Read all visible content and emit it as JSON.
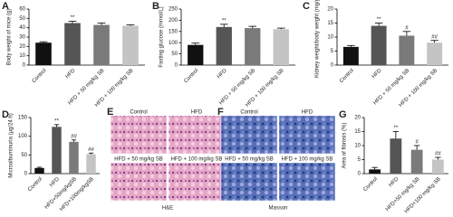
{
  "chart_data": [
    {
      "type": "bar",
      "panel": "A",
      "ylabel": "Body weight of mice (g)",
      "categories": [
        "Control",
        "HFD",
        "HFD + 50 mg/kg SB",
        "HFD + 100 mg/kg SB"
      ],
      "values": [
        24,
        45,
        43,
        42
      ],
      "errors": [
        1,
        2,
        2,
        1
      ],
      "annotations": [
        null,
        "**",
        null,
        null
      ],
      "colors": [
        "#111111",
        "#555555",
        "#7a7a7a",
        "#c4c4c4"
      ],
      "ylim": [
        0,
        60
      ],
      "yticks": [
        0,
        10,
        20,
        30,
        40,
        50,
        60
      ]
    },
    {
      "type": "bar",
      "panel": "B",
      "ylabel": "Fasting glucose (mmol/L)",
      "categories": [
        "Control",
        "HFD",
        "HFD + 50 mg/kg SB",
        "HFD + 100 mg/kg SB"
      ],
      "values": [
        90,
        170,
        165,
        160
      ],
      "errors": [
        8,
        12,
        8,
        5
      ],
      "annotations": [
        null,
        "**",
        null,
        null
      ],
      "colors": [
        "#111111",
        "#555555",
        "#7a7a7a",
        "#c4c4c4"
      ],
      "ylim": [
        0,
        250
      ],
      "yticks": [
        0,
        50,
        100,
        150,
        200,
        250
      ]
    },
    {
      "type": "bar",
      "panel": "C",
      "ylabel": "Kidney weight/body weight (mg/g)",
      "categories": [
        "Control",
        "HFD",
        "HFD + 50 mg/kg SB",
        "HFD + 100 mg/kg SB"
      ],
      "values": [
        6.5,
        14,
        10.5,
        8
      ],
      "errors": [
        0.5,
        1,
        1.5,
        0.8
      ],
      "annotations": [
        null,
        "**",
        "#",
        "##"
      ],
      "colors": [
        "#111111",
        "#555555",
        "#7a7a7a",
        "#c4c4c4"
      ],
      "ylim": [
        0,
        20
      ],
      "yticks": [
        0,
        5,
        10,
        15,
        20
      ]
    },
    {
      "type": "bar",
      "panel": "D",
      "ylabel": "Microalbuminuria (μg/24 h)",
      "categories": [
        "Control",
        "HFD",
        "HFD+50mg/kgSB",
        "HFD+100mg/kgSB"
      ],
      "values": [
        15,
        125,
        85,
        52
      ],
      "errors": [
        2,
        6,
        5,
        3
      ],
      "annotations": [
        null,
        "**",
        "##",
        "##"
      ],
      "colors": [
        "#111111",
        "#555555",
        "#7a7a7a",
        "#c4c4c4"
      ],
      "ylim": [
        0,
        150
      ],
      "yticks": [
        0,
        50,
        100,
        150
      ]
    },
    {
      "type": "bar",
      "panel": "G",
      "ylabel": "Area of fibrosis (%)",
      "categories": [
        "Control",
        "HFD",
        "HFD+50 mg/kg SB",
        "HFD+100 mg/kg SB"
      ],
      "values": [
        1.5,
        12.5,
        8.5,
        5
      ],
      "errors": [
        0.7,
        2.5,
        1.5,
        0.8
      ],
      "annotations": [
        null,
        "**",
        "#",
        "##"
      ],
      "colors": [
        "#111111",
        "#555555",
        "#7a7a7a",
        "#c4c4c4"
      ],
      "ylim": [
        0,
        20
      ],
      "yticks": [
        0,
        5,
        10,
        15,
        20
      ]
    }
  ],
  "image_panels": [
    {
      "panel": "E",
      "labels": [
        "Control",
        "HFD",
        "HFD + 50 mg/kg SB",
        "HFD + 100 mg/kg SB"
      ],
      "stain": "H&E"
    },
    {
      "panel": "F",
      "labels": [
        "Control",
        "HFD",
        "HFD + 50 mg/kg SB",
        "HFD + 100 mg/kg SB"
      ],
      "stain": "Masson"
    }
  ]
}
